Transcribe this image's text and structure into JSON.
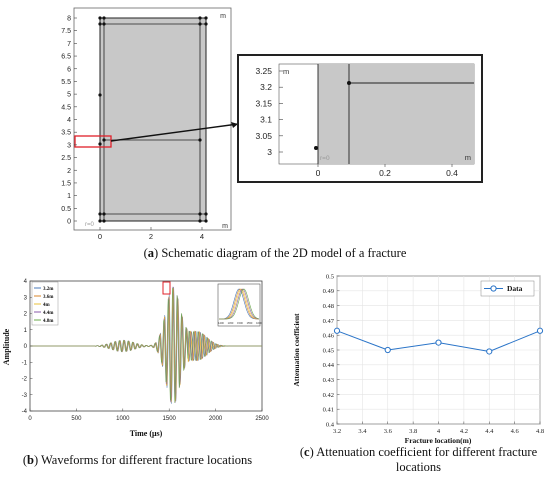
{
  "captions": {
    "a_letter": "a",
    "a_text": "Schematic diagram of the 2D model of a fracture",
    "b_letter": "b",
    "b_text": "Waveforms for different fracture locations",
    "c_letter": "c",
    "c_text": "Attenuation coefficient for different fracture locations"
  },
  "colors": {
    "model_fill": "#c8c8c8",
    "highlight": "#e0202a",
    "attenuation_line": "#2a74c8"
  },
  "chart_data": [
    {
      "id": "model",
      "type": "diagram",
      "unit": "m",
      "y_ticks": [
        "8",
        "7.5",
        "7",
        "6.5",
        "6",
        "5.5",
        "5",
        "4.5",
        "4",
        "3.5",
        "3",
        "2.5",
        "2",
        "1.5",
        "1",
        "0.5",
        "0"
      ],
      "x_ticks": [
        "0",
        "2",
        "4"
      ],
      "axis_label_x": "r=0",
      "inset": {
        "unit": "m",
        "y_ticks": [
          "3.25",
          "3.2",
          "3.15",
          "3.1",
          "3.05",
          "3"
        ],
        "x_ticks": [
          "0",
          "0.2",
          "0.4"
        ],
        "axis_label_x": "r=0"
      }
    },
    {
      "id": "waveforms",
      "type": "line",
      "xlabel": "Time (μs)",
      "ylabel": "Amplitude",
      "xlim": [
        0,
        2500
      ],
      "ylim": [
        -4,
        4
      ],
      "x_ticks": [
        "0",
        "500",
        "1000",
        "1500",
        "2000",
        "2500"
      ],
      "y_ticks": [
        "4",
        "3",
        "2",
        "1",
        "0",
        "-1",
        "-2",
        "-3",
        "-4"
      ],
      "series": [
        {
          "name": "3.2m",
          "color": "#4a7ab8"
        },
        {
          "name": "3.6m",
          "color": "#d9862a"
        },
        {
          "name": "4m",
          "color": "#e8c23a"
        },
        {
          "name": "4.4m",
          "color": "#8a5aa8"
        },
        {
          "name": "4.8m",
          "color": "#6aa84a"
        }
      ],
      "inset_x_ticks": [
        "1400",
        "1450",
        "1500",
        "1550",
        "1600"
      ]
    },
    {
      "id": "attenuation",
      "type": "line",
      "xlabel": "Fracture location(m)",
      "ylabel": "Attenuation coefficient",
      "legend": "Data",
      "x": [
        3.2,
        3.6,
        4.0,
        4.4,
        4.8
      ],
      "y": [
        0.463,
        0.45,
        0.455,
        0.449,
        0.463
      ],
      "xlim": [
        3.2,
        4.8
      ],
      "ylim": [
        0.4,
        0.5
      ],
      "x_ticks": [
        "3.2",
        "3.4",
        "3.6",
        "3.8",
        "4",
        "4.2",
        "4.4",
        "4.6",
        "4.8"
      ],
      "y_ticks": [
        "0.5",
        "0.49",
        "0.48",
        "0.47",
        "0.46",
        "0.45",
        "0.44",
        "0.43",
        "0.42",
        "0.41",
        "0.4"
      ]
    }
  ]
}
